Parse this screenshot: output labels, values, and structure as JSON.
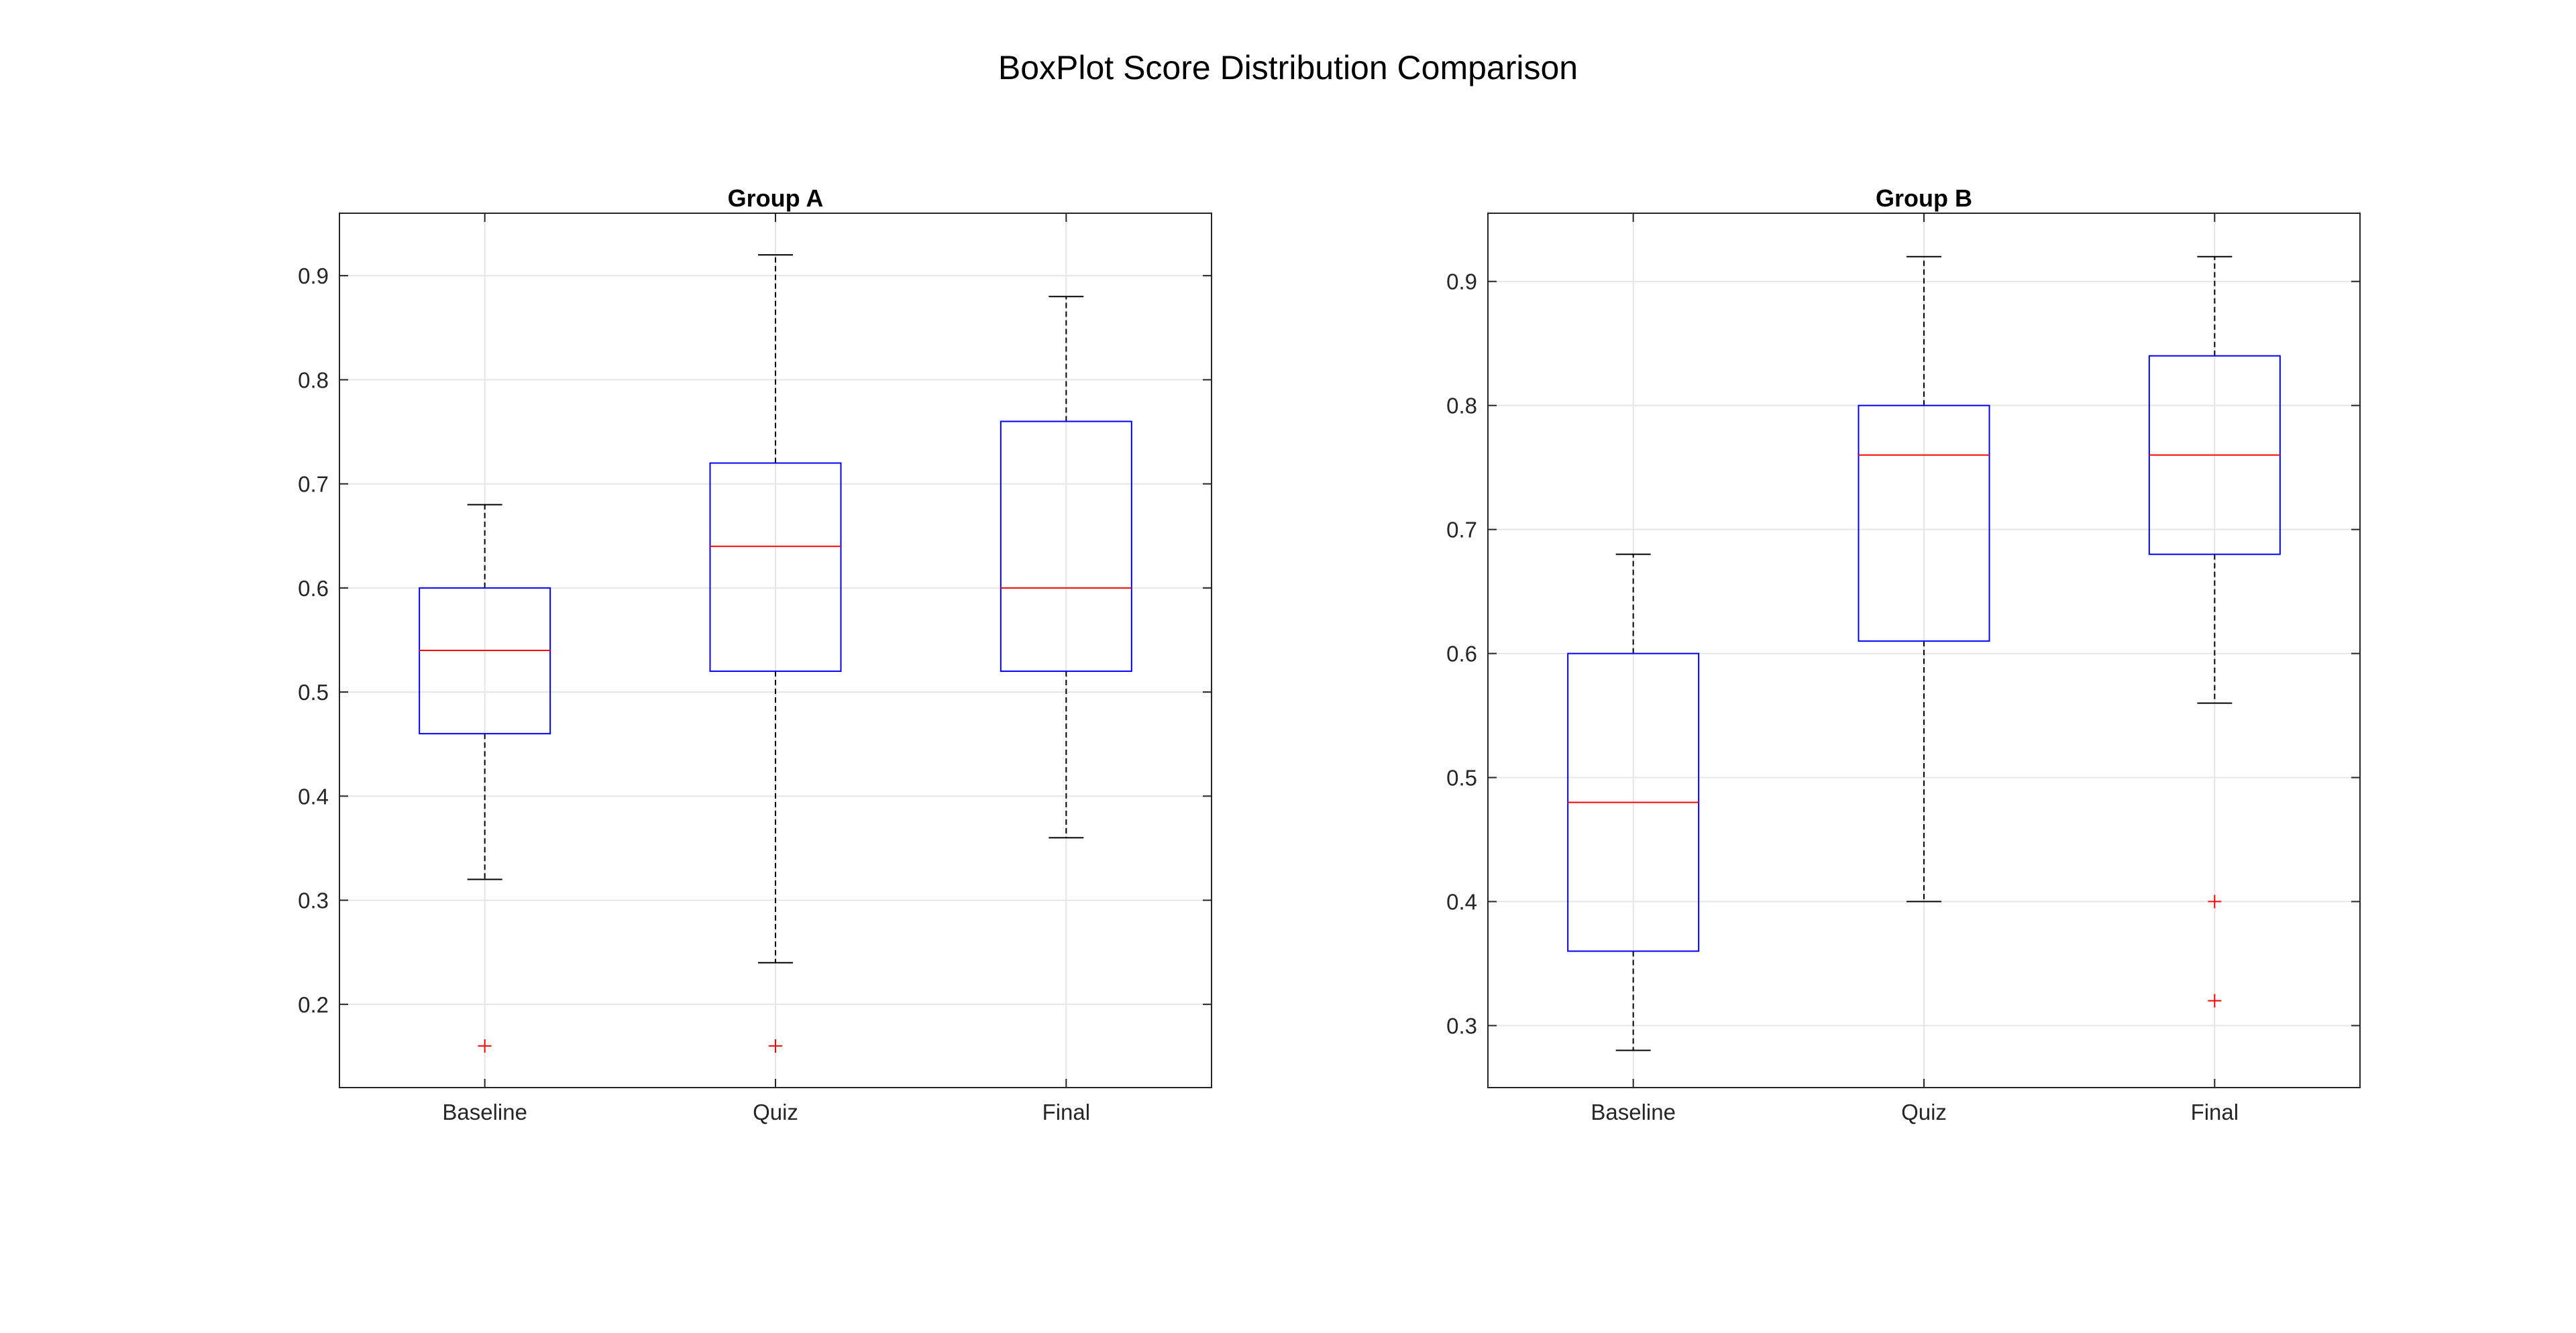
{
  "figure": {
    "title": "BoxPlot Score Distribution Comparison"
  },
  "colors": {
    "box": "#0000ff",
    "median": "#ff0000",
    "whisker": "#000000",
    "outlier": "#ff0000",
    "grid": "#e6e6e6",
    "axes": "#262626"
  },
  "chart_data": [
    {
      "type": "box",
      "title": "Group A",
      "xlabel": "",
      "ylabel": "",
      "categories": [
        "Baseline",
        "Quiz",
        "Final"
      ],
      "ylim": [
        0.12,
        0.96
      ],
      "yticks": [
        0.2,
        0.3,
        0.4,
        0.5,
        0.6,
        0.7,
        0.8,
        0.9
      ],
      "ytick_labels": [
        "0.2",
        "0.3",
        "0.4",
        "0.5",
        "0.6",
        "0.7",
        "0.8",
        "0.9"
      ],
      "grid": true,
      "boxes": [
        {
          "category": "Baseline",
          "whisker_low": 0.32,
          "q1": 0.46,
          "median": 0.54,
          "q3": 0.6,
          "whisker_high": 0.68,
          "outliers": [
            0.16
          ]
        },
        {
          "category": "Quiz",
          "whisker_low": 0.24,
          "q1": 0.52,
          "median": 0.64,
          "q3": 0.72,
          "whisker_high": 0.92,
          "outliers": [
            0.16
          ]
        },
        {
          "category": "Final",
          "whisker_low": 0.36,
          "q1": 0.52,
          "median": 0.6,
          "q3": 0.76,
          "whisker_high": 0.88,
          "outliers": []
        }
      ]
    },
    {
      "type": "box",
      "title": "Group B",
      "xlabel": "",
      "ylabel": "",
      "categories": [
        "Baseline",
        "Quiz",
        "Final"
      ],
      "ylim": [
        0.25,
        0.955
      ],
      "yticks": [
        0.3,
        0.4,
        0.5,
        0.6,
        0.7,
        0.8,
        0.9
      ],
      "ytick_labels": [
        "0.3",
        "0.4",
        "0.5",
        "0.6",
        "0.7",
        "0.8",
        "0.9"
      ],
      "grid": true,
      "boxes": [
        {
          "category": "Baseline",
          "whisker_low": 0.28,
          "q1": 0.36,
          "median": 0.48,
          "q3": 0.6,
          "whisker_high": 0.68,
          "outliers": []
        },
        {
          "category": "Quiz",
          "whisker_low": 0.4,
          "q1": 0.61,
          "median": 0.76,
          "q3": 0.8,
          "whisker_high": 0.92,
          "outliers": []
        },
        {
          "category": "Final",
          "whisker_low": 0.56,
          "q1": 0.68,
          "median": 0.76,
          "q3": 0.84,
          "whisker_high": 0.92,
          "outliers": [
            0.4,
            0.32
          ]
        }
      ]
    }
  ]
}
